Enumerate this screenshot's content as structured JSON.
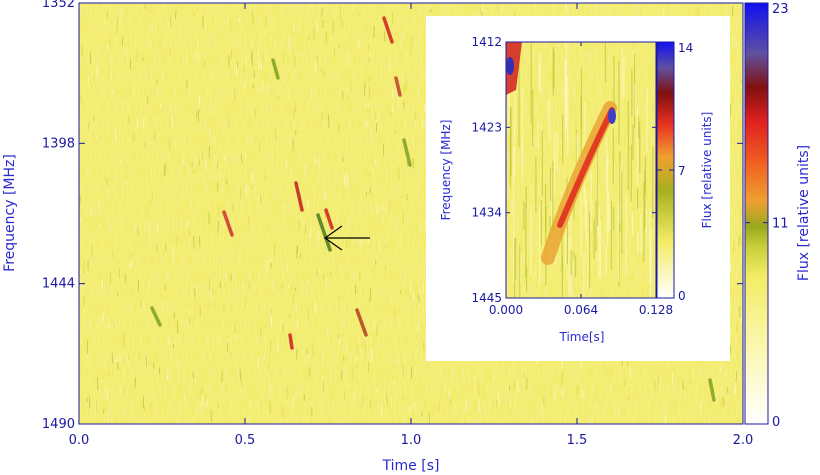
{
  "chart_data": [
    {
      "type": "heatmap",
      "id": "main",
      "xlabel": "Time [s]",
      "ylabel": "Frequency [MHz]",
      "xlim": [
        0.0,
        2.0
      ],
      "ylim": [
        1352,
        1490
      ],
      "y_inverted": true,
      "x_ticks": [
        "0.0",
        "0.5",
        "1.0",
        "1.5",
        "2.0"
      ],
      "y_ticks": [
        "1352",
        "1398",
        "1444",
        "1490"
      ],
      "colorbar": {
        "label": "Flux [relative units]",
        "range": [
          0,
          23
        ],
        "ticks": [
          "0",
          "11",
          "23"
        ]
      },
      "annotations": [
        {
          "type": "arrow",
          "points_to": {
            "x": 0.73,
            "y": 1425
          }
        }
      ]
    },
    {
      "type": "heatmap",
      "id": "inset",
      "xlabel": "Time[s]",
      "ylabel": "Frequency [MHz]",
      "xlim": [
        0.0,
        0.128
      ],
      "ylim": [
        1412,
        1445
      ],
      "y_inverted": true,
      "x_ticks": [
        "0.000",
        "0.064",
        "0.128"
      ],
      "y_ticks": [
        "1412",
        "1423",
        "1434",
        "1445"
      ],
      "colorbar": {
        "label": "Flux [relative units]",
        "range": [
          0,
          14
        ],
        "ticks": [
          "0",
          "7",
          "14"
        ]
      }
    }
  ],
  "colors": {
    "background_yellow": "#f2ec6a",
    "axis_blue": "#1a1aa0",
    "label_blue": "#2a2ad0"
  }
}
